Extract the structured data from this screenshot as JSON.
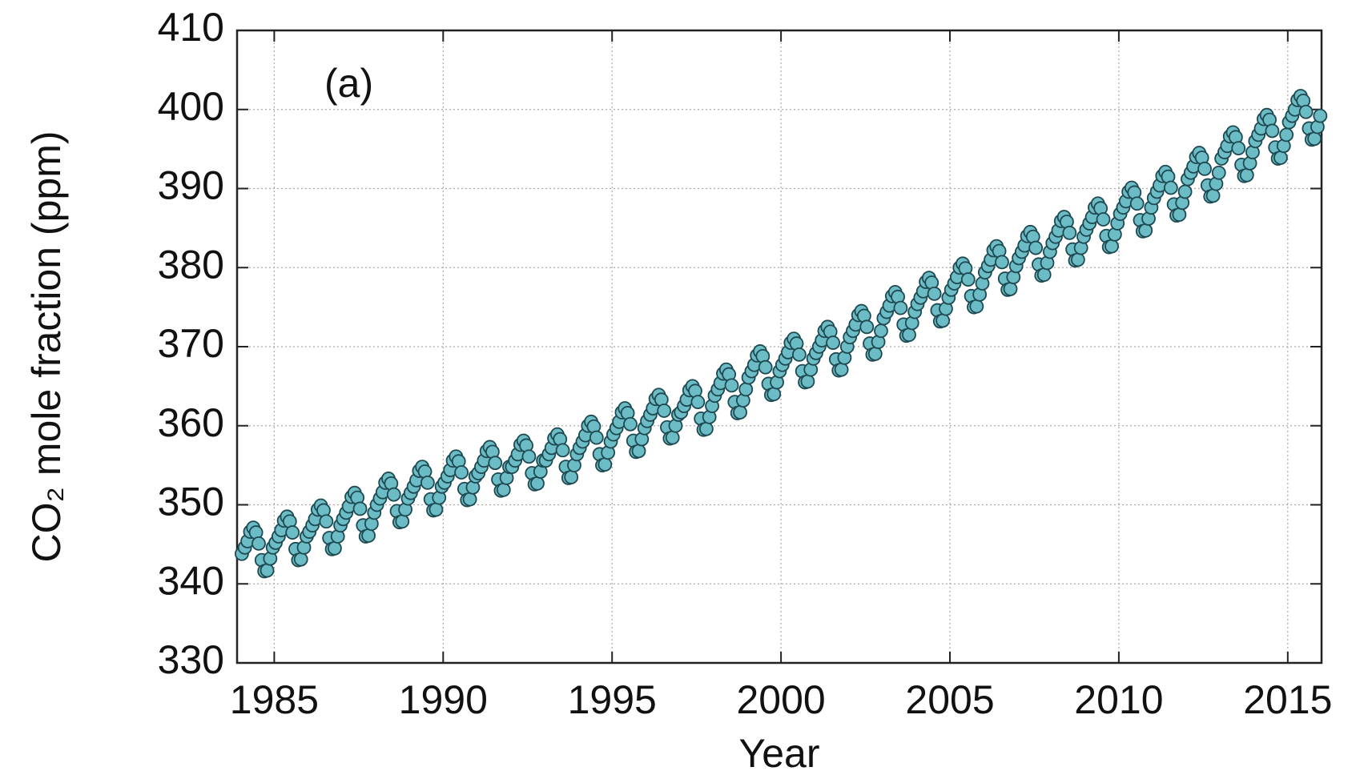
{
  "chart_data": {
    "type": "scatter",
    "annotation": "(a)",
    "xlabel": "Year",
    "ylabel": "CO₂ mole fraction (ppm)",
    "xlim": [
      1983.9,
      2016.0
    ],
    "ylim": [
      330,
      410
    ],
    "xticks": [
      1985,
      1990,
      1995,
      2000,
      2005,
      2010,
      2015
    ],
    "yticks": [
      330,
      340,
      350,
      360,
      370,
      380,
      390,
      400,
      410
    ],
    "grid": true,
    "series": [
      {
        "color": "#6cbcc6",
        "x": [
          1984.04,
          1984.13,
          1984.21,
          1984.29,
          1984.38,
          1984.46,
          1984.54,
          1984.63,
          1984.71,
          1984.79,
          1984.88,
          1984.96,
          1985.04,
          1985.13,
          1985.21,
          1985.29,
          1985.38,
          1985.46,
          1985.54,
          1985.63,
          1985.71,
          1985.79,
          1985.88,
          1985.96,
          1986.04,
          1986.13,
          1986.21,
          1986.29,
          1986.38,
          1986.46,
          1986.54,
          1986.63,
          1986.71,
          1986.79,
          1986.88,
          1986.96,
          1987.04,
          1987.13,
          1987.21,
          1987.29,
          1987.38,
          1987.46,
          1987.54,
          1987.63,
          1987.71,
          1987.79,
          1987.88,
          1987.96,
          1988.04,
          1988.13,
          1988.21,
          1988.29,
          1988.38,
          1988.46,
          1988.54,
          1988.63,
          1988.71,
          1988.79,
          1988.88,
          1988.96,
          1989.04,
          1989.13,
          1989.21,
          1989.29,
          1989.38,
          1989.46,
          1989.54,
          1989.63,
          1989.71,
          1989.79,
          1989.88,
          1989.96,
          1990.04,
          1990.13,
          1990.21,
          1990.29,
          1990.38,
          1990.46,
          1990.54,
          1990.63,
          1990.71,
          1990.79,
          1990.88,
          1990.96,
          1991.04,
          1991.13,
          1991.21,
          1991.29,
          1991.38,
          1991.46,
          1991.54,
          1991.63,
          1991.71,
          1991.79,
          1991.88,
          1991.96,
          1992.04,
          1992.13,
          1992.21,
          1992.29,
          1992.38,
          1992.46,
          1992.54,
          1992.63,
          1992.71,
          1992.79,
          1992.88,
          1992.96,
          1993.04,
          1993.13,
          1993.21,
          1993.29,
          1993.38,
          1993.46,
          1993.54,
          1993.63,
          1993.71,
          1993.79,
          1993.88,
          1993.96,
          1994.04,
          1994.13,
          1994.21,
          1994.29,
          1994.38,
          1994.46,
          1994.54,
          1994.63,
          1994.71,
          1994.79,
          1994.88,
          1994.96,
          1995.04,
          1995.13,
          1995.21,
          1995.29,
          1995.38,
          1995.46,
          1995.54,
          1995.63,
          1995.71,
          1995.79,
          1995.88,
          1995.96,
          1996.04,
          1996.13,
          1996.21,
          1996.29,
          1996.38,
          1996.46,
          1996.54,
          1996.63,
          1996.71,
          1996.79,
          1996.88,
          1996.96,
          1997.04,
          1997.13,
          1997.21,
          1997.29,
          1997.38,
          1997.46,
          1997.54,
          1997.63,
          1997.71,
          1997.79,
          1997.88,
          1997.96,
          1998.04,
          1998.13,
          1998.21,
          1998.29,
          1998.38,
          1998.46,
          1998.54,
          1998.63,
          1998.71,
          1998.79,
          1998.88,
          1998.96,
          1999.04,
          1999.13,
          1999.21,
          1999.29,
          1999.38,
          1999.46,
          1999.54,
          1999.63,
          1999.71,
          1999.79,
          1999.88,
          1999.96,
          2000.04,
          2000.13,
          2000.21,
          2000.29,
          2000.38,
          2000.46,
          2000.54,
          2000.63,
          2000.71,
          2000.79,
          2000.88,
          2000.96,
          2001.04,
          2001.13,
          2001.21,
          2001.29,
          2001.38,
          2001.46,
          2001.54,
          2001.63,
          2001.71,
          2001.79,
          2001.88,
          2001.96,
          2002.04,
          2002.13,
          2002.21,
          2002.29,
          2002.38,
          2002.46,
          2002.54,
          2002.63,
          2002.71,
          2002.79,
          2002.88,
          2002.96,
          2003.04,
          2003.13,
          2003.21,
          2003.29,
          2003.38,
          2003.46,
          2003.54,
          2003.63,
          2003.71,
          2003.79,
          2003.88,
          2003.96,
          2004.04,
          2004.13,
          2004.21,
          2004.29,
          2004.38,
          2004.46,
          2004.54,
          2004.63,
          2004.71,
          2004.79,
          2004.88,
          2004.96,
          2005.04,
          2005.13,
          2005.21,
          2005.29,
          2005.38,
          2005.46,
          2005.54,
          2005.63,
          2005.71,
          2005.79,
          2005.88,
          2005.96,
          2006.04,
          2006.13,
          2006.21,
          2006.29,
          2006.38,
          2006.46,
          2006.54,
          2006.63,
          2006.71,
          2006.79,
          2006.88,
          2006.96,
          2007.04,
          2007.13,
          2007.21,
          2007.29,
          2007.38,
          2007.46,
          2007.54,
          2007.63,
          2007.71,
          2007.79,
          2007.88,
          2007.96,
          2008.04,
          2008.13,
          2008.21,
          2008.29,
          2008.38,
          2008.46,
          2008.54,
          2008.63,
          2008.71,
          2008.79,
          2008.88,
          2008.96,
          2009.04,
          2009.13,
          2009.21,
          2009.29,
          2009.38,
          2009.46,
          2009.54,
          2009.63,
          2009.71,
          2009.79,
          2009.88,
          2009.96,
          2010.04,
          2010.13,
          2010.21,
          2010.29,
          2010.38,
          2010.46,
          2010.54,
          2010.63,
          2010.71,
          2010.79,
          2010.88,
          2010.96,
          2011.04,
          2011.13,
          2011.21,
          2011.29,
          2011.38,
          2011.46,
          2011.54,
          2011.63,
          2011.71,
          2011.79,
          2011.88,
          2011.96,
          2012.04,
          2012.13,
          2012.21,
          2012.29,
          2012.38,
          2012.46,
          2012.54,
          2012.63,
          2012.71,
          2012.79,
          2012.88,
          2012.96,
          2013.04,
          2013.13,
          2013.21,
          2013.29,
          2013.38,
          2013.46,
          2013.54,
          2013.63,
          2013.71,
          2013.79,
          2013.88,
          2013.96,
          2014.04,
          2014.13,
          2014.21,
          2014.29,
          2014.38,
          2014.46,
          2014.54,
          2014.63,
          2014.71,
          2014.79,
          2014.88,
          2014.96,
          2015.04,
          2015.13,
          2015.21,
          2015.29,
          2015.38,
          2015.46,
          2015.54,
          2015.63,
          2015.71,
          2015.79,
          2015.88,
          2015.96
        ],
        "values": [
          343.8,
          344.6,
          345.4,
          346.6,
          347.1,
          346.5,
          345.1,
          343.0,
          341.6,
          341.7,
          343.2,
          344.6,
          345.2,
          346.0,
          346.8,
          348.0,
          348.5,
          347.9,
          346.5,
          344.4,
          343.0,
          343.1,
          344.6,
          346.0,
          346.6,
          347.4,
          348.2,
          349.4,
          349.9,
          349.3,
          347.9,
          345.8,
          344.4,
          344.5,
          346.0,
          347.4,
          348.2,
          349.0,
          349.8,
          351.0,
          351.5,
          350.9,
          349.5,
          347.4,
          346.0,
          346.1,
          347.6,
          349.0,
          350.0,
          350.8,
          351.6,
          352.8,
          353.3,
          352.7,
          351.3,
          349.2,
          347.8,
          347.9,
          349.4,
          350.8,
          351.5,
          352.3,
          353.1,
          354.3,
          354.8,
          354.2,
          352.8,
          350.7,
          349.3,
          349.4,
          350.9,
          352.3,
          352.8,
          353.6,
          354.4,
          355.6,
          356.1,
          355.5,
          354.1,
          352.0,
          350.6,
          350.7,
          352.2,
          353.6,
          354.0,
          354.8,
          355.6,
          356.8,
          357.3,
          356.7,
          355.3,
          353.2,
          351.8,
          351.9,
          353.4,
          354.8,
          354.8,
          355.6,
          356.4,
          357.6,
          358.1,
          357.5,
          356.1,
          354.0,
          352.6,
          352.7,
          354.2,
          355.6,
          355.6,
          356.4,
          357.2,
          358.4,
          358.9,
          358.3,
          356.9,
          354.8,
          353.4,
          353.5,
          355.0,
          356.4,
          357.2,
          358.0,
          358.8,
          360.0,
          360.5,
          359.9,
          358.5,
          356.4,
          355.0,
          355.1,
          356.6,
          358.0,
          358.9,
          359.7,
          360.5,
          361.7,
          362.2,
          361.6,
          360.2,
          358.1,
          356.7,
          356.8,
          358.3,
          359.7,
          360.6,
          361.4,
          362.2,
          363.4,
          363.9,
          363.3,
          361.9,
          359.8,
          358.4,
          358.5,
          360.0,
          361.4,
          361.7,
          362.5,
          363.3,
          364.5,
          365.0,
          364.4,
          363.0,
          360.9,
          359.5,
          359.6,
          361.1,
          362.5,
          363.8,
          364.6,
          365.4,
          366.6,
          367.1,
          366.5,
          365.1,
          363.0,
          361.6,
          361.7,
          363.2,
          364.6,
          366.1,
          366.9,
          367.7,
          368.9,
          369.4,
          368.8,
          367.4,
          365.3,
          363.9,
          364.0,
          365.5,
          366.9,
          367.7,
          368.5,
          369.3,
          370.5,
          371.0,
          370.4,
          369.0,
          366.9,
          365.5,
          365.6,
          367.1,
          368.5,
          369.2,
          370.0,
          370.8,
          372.0,
          372.5,
          371.9,
          370.5,
          368.4,
          367.0,
          367.1,
          368.6,
          370.0,
          371.2,
          372.0,
          372.8,
          374.0,
          374.5,
          373.9,
          372.5,
          370.4,
          369.0,
          369.1,
          370.6,
          372.0,
          373.6,
          374.4,
          375.2,
          376.4,
          376.9,
          376.3,
          374.9,
          372.8,
          371.4,
          371.5,
          373.0,
          374.4,
          375.4,
          376.2,
          377.0,
          378.2,
          378.7,
          378.1,
          376.7,
          374.6,
          373.2,
          373.3,
          374.8,
          376.2,
          377.2,
          378.0,
          378.8,
          380.0,
          380.5,
          379.9,
          378.5,
          376.4,
          375.0,
          375.1,
          376.6,
          378.0,
          379.4,
          380.2,
          381.0,
          382.2,
          382.7,
          382.1,
          380.7,
          378.6,
          377.2,
          377.3,
          378.8,
          380.2,
          381.2,
          382.0,
          382.8,
          384.0,
          384.5,
          383.9,
          382.5,
          380.4,
          379.0,
          379.1,
          380.6,
          382.0,
          383.1,
          383.9,
          384.7,
          385.9,
          386.4,
          385.8,
          384.4,
          382.3,
          380.9,
          381.0,
          382.5,
          383.9,
          384.8,
          385.6,
          386.4,
          387.6,
          388.1,
          387.5,
          386.1,
          384.0,
          382.6,
          382.7,
          384.2,
          385.6,
          386.8,
          387.6,
          388.4,
          389.6,
          390.1,
          389.5,
          388.1,
          386.0,
          384.6,
          384.7,
          386.2,
          387.6,
          388.8,
          389.6,
          390.4,
          391.6,
          392.1,
          391.5,
          390.1,
          388.0,
          386.6,
          386.7,
          388.2,
          389.6,
          391.2,
          392.0,
          392.8,
          394.0,
          394.5,
          393.9,
          392.5,
          390.4,
          389.0,
          389.1,
          390.6,
          392.0,
          393.8,
          394.6,
          395.4,
          396.6,
          397.1,
          396.5,
          395.1,
          393.0,
          391.6,
          391.7,
          393.2,
          394.6,
          396.0,
          396.8,
          397.6,
          398.8,
          399.3,
          398.7,
          397.3,
          395.2,
          393.8,
          393.9,
          395.4,
          396.8,
          398.4,
          399.2,
          400.0,
          401.2,
          401.7,
          401.1,
          399.7,
          397.6,
          396.2,
          396.3,
          397.8,
          399.2
        ]
      }
    ]
  }
}
